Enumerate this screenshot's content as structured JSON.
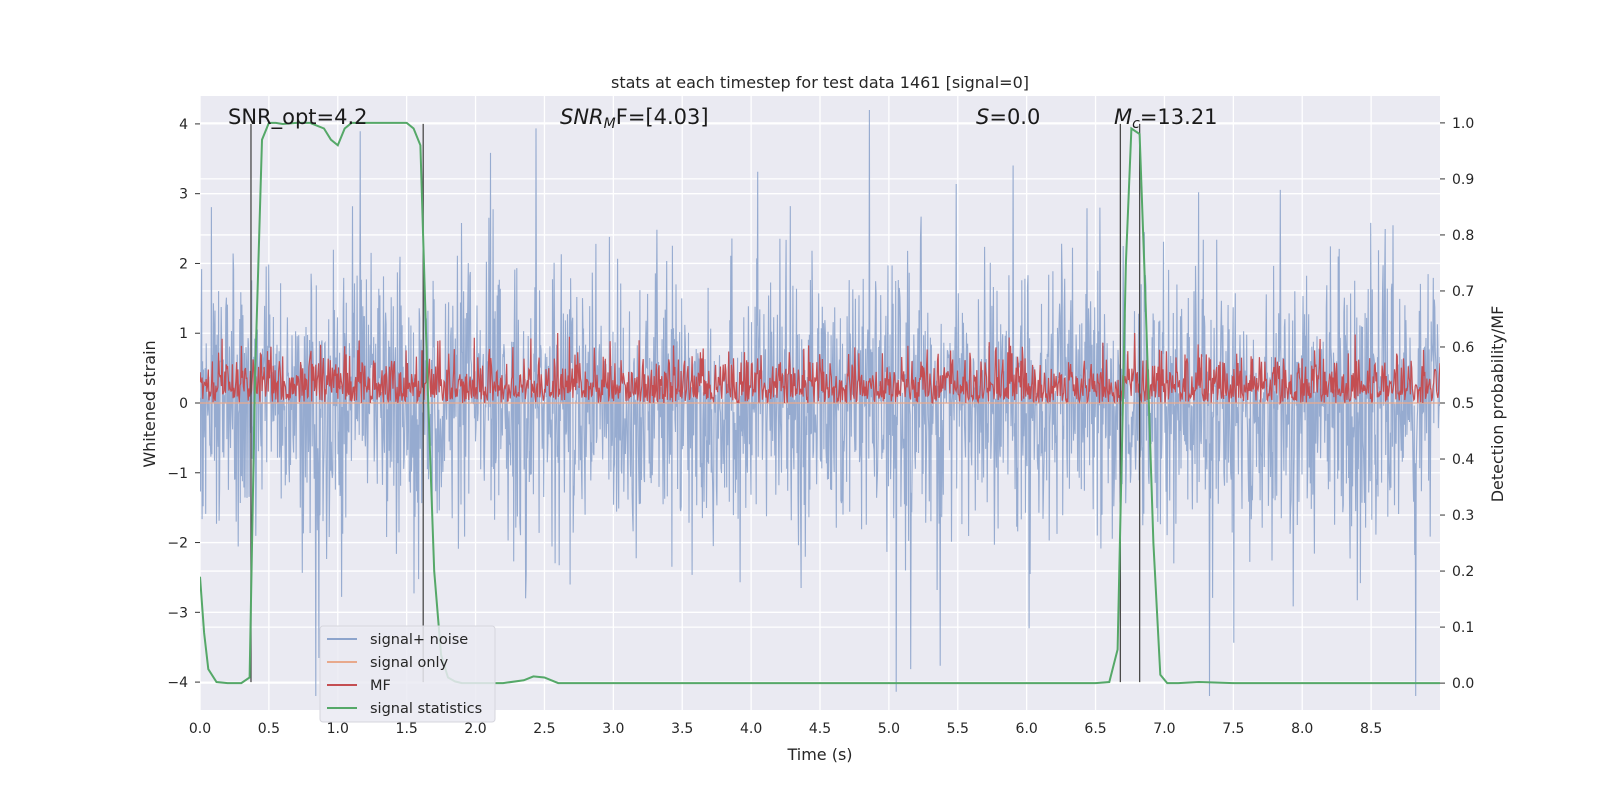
{
  "chart_data": {
    "type": "line",
    "title": "stats at each timestep for test data 1461 [signal=0]",
    "xlabel": "Time (s)",
    "ylabel": "Whitened strain",
    "y2label": "Detection probability/MF",
    "xlim": [
      0,
      9.0
    ],
    "ylim": [
      -4.4,
      4.4
    ],
    "y2lim": [
      -0.048,
      1.048
    ],
    "xticks": [
      0.0,
      0.5,
      1.0,
      1.5,
      2.0,
      2.5,
      3.0,
      3.5,
      4.0,
      4.5,
      5.0,
      5.5,
      6.0,
      6.5,
      7.0,
      7.5,
      8.0,
      8.5
    ],
    "xtick_labels": [
      "0.0",
      "0.5",
      "1.0",
      "1.5",
      "2.0",
      "2.5",
      "3.0",
      "3.5",
      "4.0",
      "4.5",
      "5.0",
      "5.5",
      "6.0",
      "6.5",
      "7.0",
      "7.5",
      "8.0",
      "8.5"
    ],
    "yticks": [
      -4,
      -3,
      -2,
      -1,
      0,
      1,
      2,
      3,
      4
    ],
    "ytick_labels": [
      "−4",
      "−3",
      "−2",
      "−1",
      "0",
      "1",
      "2",
      "3",
      "4"
    ],
    "y2ticks": [
      0.0,
      0.1,
      0.2,
      0.3,
      0.4,
      0.5,
      0.6,
      0.7,
      0.8,
      0.9,
      1.0
    ],
    "y2tick_labels": [
      "0.0",
      "0.1",
      "0.2",
      "0.3",
      "0.4",
      "0.5",
      "0.6",
      "0.7",
      "0.8",
      "0.9",
      "1.0"
    ],
    "grid": true,
    "legend_position": "lower-left",
    "colors": {
      "background": "#eaeaf2",
      "grid": "#ffffff",
      "signal_noise": "#8da4cc",
      "signal_only": "#e8a98c",
      "mf": "#c44e52",
      "signal_statistics": "#55a868",
      "vlines": "#4a4a4a"
    },
    "annotations": {
      "snr_opt": "SNR_opt=4.2",
      "snr_mf": "SNR",
      "snr_mf_sub": "M",
      "snr_mf_rest": "F=[4.03]",
      "s_label": "S",
      "s_rest": "=0.0",
      "mc_label": "M",
      "mc_sub": "c",
      "mc_rest": "=13.21"
    },
    "vertical_lines_x": [
      0.37,
      1.62,
      6.68,
      6.82
    ],
    "series": [
      {
        "name": "signal+ noise",
        "axis": "left",
        "description": "dense whitened strain noise trace, amplitude mostly within ±2, peaks to ±4"
      },
      {
        "name": "signal only",
        "axis": "left",
        "description": "zero signal (signal=0)"
      },
      {
        "name": "MF",
        "axis": "right",
        "description": "matched-filter output oscillating between about 0.5 and 0.62 on the right axis"
      },
      {
        "name": "signal statistics",
        "axis": "right",
        "x": [
          0.0,
          0.03,
          0.06,
          0.12,
          0.2,
          0.3,
          0.36,
          0.4,
          0.45,
          0.5,
          0.55,
          0.6,
          0.7,
          0.8,
          0.9,
          0.95,
          1.0,
          1.05,
          1.1,
          1.15,
          1.2,
          1.3,
          1.4,
          1.5,
          1.55,
          1.6,
          1.65,
          1.7,
          1.75,
          1.8,
          1.85,
          1.9,
          2.0,
          2.2,
          2.35,
          2.42,
          2.5,
          2.6,
          3.0,
          4.0,
          5.0,
          6.0,
          6.5,
          6.6,
          6.66,
          6.72,
          6.76,
          6.82,
          6.86,
          6.92,
          6.97,
          7.02,
          7.1,
          7.25,
          7.5,
          8.0,
          8.5,
          9.0
        ],
        "y": [
          0.19,
          0.09,
          0.025,
          0.002,
          0.0,
          0.0,
          0.01,
          0.55,
          0.97,
          1.0,
          1.0,
          0.998,
          1.0,
          1.0,
          0.99,
          0.97,
          0.96,
          0.99,
          1.0,
          1.0,
          1.0,
          1.0,
          1.0,
          1.0,
          0.99,
          0.96,
          0.55,
          0.2,
          0.05,
          0.01,
          0.003,
          0.0,
          0.0,
          0.0,
          0.005,
          0.012,
          0.01,
          0.0,
          0.0,
          0.0,
          0.0,
          0.0,
          0.0,
          0.002,
          0.06,
          0.75,
          0.99,
          0.98,
          0.7,
          0.25,
          0.015,
          0.0,
          0.0,
          0.002,
          0.0,
          0.0,
          0.0,
          0.0
        ]
      }
    ]
  }
}
